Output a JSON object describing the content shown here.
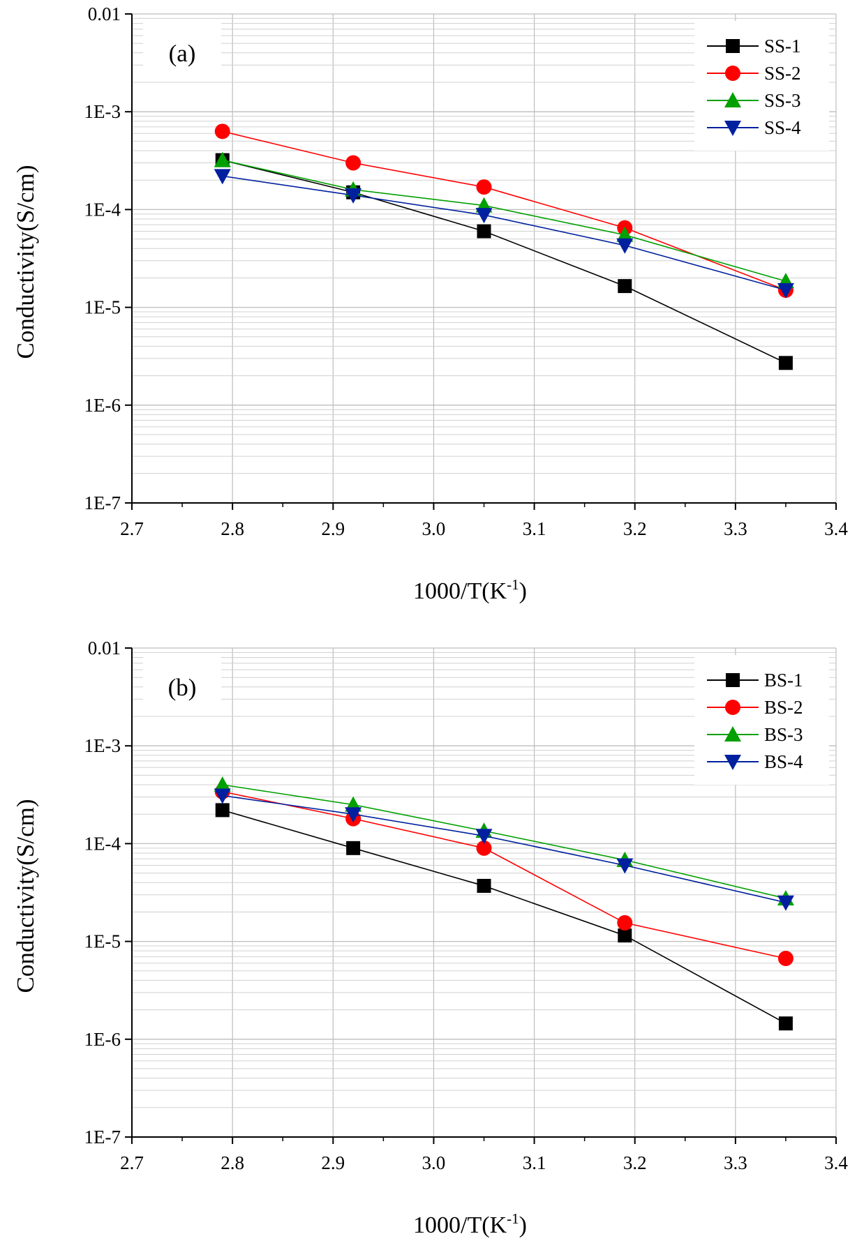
{
  "chart_data": [
    {
      "type": "line",
      "panel_label": "(a)",
      "xlabel": "1000/T(K",
      "xlabel_sup": "-1",
      "xlabel_close": ")",
      "ylabel": "Conductivity(S/cm)",
      "xlim": [
        2.7,
        3.4
      ],
      "ylim": [
        1e-07,
        0.01
      ],
      "yscale": "log",
      "grid": true,
      "legend_position": "top-right",
      "x_ticks": [
        "2.7",
        "2.8",
        "2.9",
        "3.0",
        "3.1",
        "3.2",
        "3.3",
        "3.4"
      ],
      "y_ticks": [
        "1E-7",
        "1E-6",
        "1E-5",
        "1E-4",
        "1E-3",
        "0.01"
      ],
      "x": [
        2.79,
        2.92,
        3.05,
        3.19,
        3.35
      ],
      "series": [
        {
          "name": "SS-1",
          "color": "#000000",
          "marker": "square",
          "values": [
            0.00032,
            0.00015,
            6e-05,
            1.65e-05,
            2.7e-06
          ]
        },
        {
          "name": "SS-2",
          "color": "#ff0000",
          "marker": "circle",
          "values": [
            0.00063,
            0.0003,
            0.00017,
            6.5e-05,
            1.5e-05
          ]
        },
        {
          "name": "SS-3",
          "color": "#00a000",
          "marker": "triangle-up",
          "values": [
            0.00032,
            0.00016,
            0.00011,
            5.5e-05,
            1.85e-05
          ]
        },
        {
          "name": "SS-4",
          "color": "#00209f",
          "marker": "triangle-down",
          "values": [
            0.00022,
            0.00014,
            8.8e-05,
            4.3e-05,
            1.5e-05
          ]
        }
      ]
    },
    {
      "type": "line",
      "panel_label": "(b)",
      "xlabel": "1000/T(K",
      "xlabel_sup": "-1",
      "xlabel_close": ")",
      "ylabel": "Conductivity(S/cm)",
      "xlim": [
        2.7,
        3.4
      ],
      "ylim": [
        1e-07,
        0.01
      ],
      "yscale": "log",
      "grid": true,
      "legend_position": "top-right",
      "x_ticks": [
        "2.7",
        "2.8",
        "2.9",
        "3.0",
        "3.1",
        "3.2",
        "3.3",
        "3.4"
      ],
      "y_ticks": [
        "1E-7",
        "1E-6",
        "1E-5",
        "1E-4",
        "1E-3",
        "0.01"
      ],
      "x": [
        2.79,
        2.92,
        3.05,
        3.19,
        3.35
      ],
      "series": [
        {
          "name": "BS-1",
          "color": "#000000",
          "marker": "square",
          "values": [
            0.00022,
            9e-05,
            3.7e-05,
            1.15e-05,
            1.45e-06
          ]
        },
        {
          "name": "BS-2",
          "color": "#ff0000",
          "marker": "circle",
          "values": [
            0.00034,
            0.00018,
            9e-05,
            1.55e-05,
            6.7e-06
          ]
        },
        {
          "name": "BS-3",
          "color": "#00a000",
          "marker": "triangle-up",
          "values": [
            0.0004,
            0.00025,
            0.000135,
            6.8e-05,
            2.75e-05
          ]
        },
        {
          "name": "BS-4",
          "color": "#00209f",
          "marker": "triangle-down",
          "values": [
            0.00031,
            0.0002,
            0.00012,
            6e-05,
            2.5e-05
          ]
        }
      ]
    }
  ]
}
